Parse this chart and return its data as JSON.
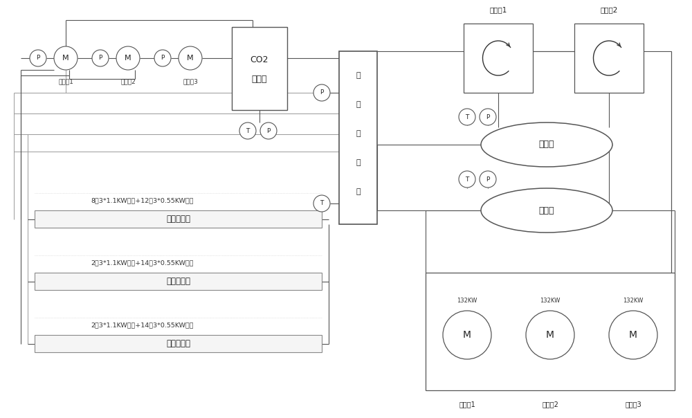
{
  "bg_color": "#ffffff",
  "lc": "#888888",
  "dk": "#555555",
  "purple": "#9966aa",
  "pump_labels": [
    "屏蔽泵1",
    "屏蔽泵2",
    "屏蔽泵3"
  ],
  "co2_lines": [
    "CO2",
    "贮液器"
  ],
  "condenser_chars": [
    "冷",
    "凝",
    "蒸",
    "发",
    "器"
  ],
  "evap_labels": [
    "蒸发器1",
    "蒸发器2"
  ],
  "tank_labels": [
    "虹吸罐",
    "储液罐"
  ],
  "station_labels": [
    "一层调节站",
    "二层调节站",
    "三层调节站"
  ],
  "station_texts": [
    "8台3*1.1KW风机+12台3*0.55KW风机",
    "2台3*1.1KW风机+14台3*0.55KW风机",
    "2台3*1.1KW风机+14台3*0.55KW风机"
  ],
  "comp_labels": [
    "压空机1",
    "压缩机2",
    "压缩机3"
  ],
  "comp_kw": [
    "132KW",
    "132KW",
    "132KW"
  ]
}
